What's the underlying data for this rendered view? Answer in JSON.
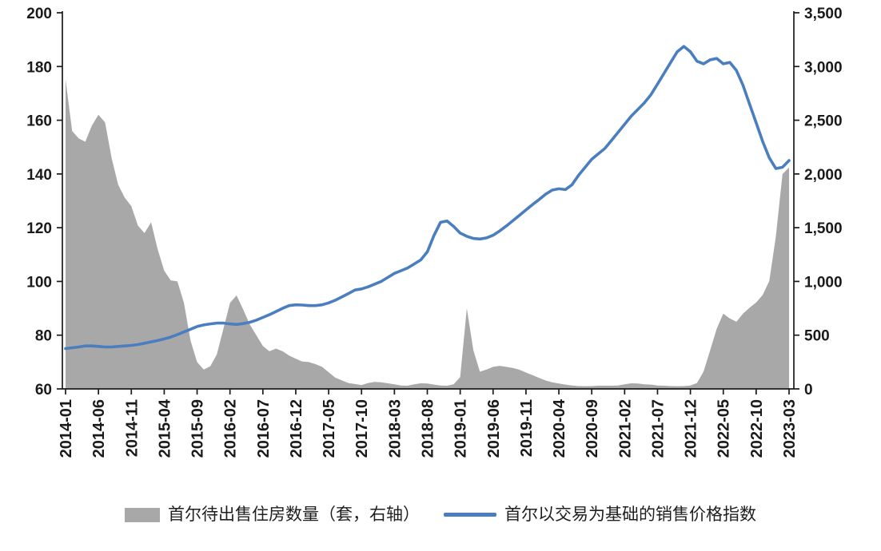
{
  "chart_data": {
    "type": "combo",
    "x_start": "2014-01",
    "x_months": 111,
    "x_tick_step": 5,
    "x_tick_labels": [
      "2014-01",
      "2014-06",
      "2014-11",
      "2015-04",
      "2015-09",
      "2016-02",
      "2016-07",
      "2016-12",
      "2017-05",
      "2017-10",
      "2018-03",
      "2018-08",
      "2019-01",
      "2019-06",
      "2019-11",
      "2020-04",
      "2020-09",
      "2021-02",
      "2021-07",
      "2021-12",
      "2022-05",
      "2022-10",
      "2023-03"
    ],
    "left_axis": {
      "min": 60,
      "max": 200,
      "ticks": [
        200,
        180,
        160,
        140,
        120,
        100,
        80,
        60
      ]
    },
    "right_axis": {
      "min": 0,
      "max": 3500,
      "ticks": [
        3500,
        3000,
        2500,
        2000,
        1500,
        1000,
        500,
        0
      ],
      "tick_labels": [
        "3,500",
        "3,000",
        "2,500",
        "2,000",
        "1,500",
        "1,000",
        "500",
        "0"
      ]
    },
    "axis_color": "#1a1a1a",
    "grid": false,
    "legend_position": "bottom",
    "series": [
      {
        "name": "首尔待出售住房数量（套，右轴）",
        "type": "area",
        "axis": "right",
        "color": "#A8A8A8",
        "values": [
          2880,
          2400,
          2330,
          2300,
          2450,
          2550,
          2480,
          2150,
          1900,
          1780,
          1700,
          1520,
          1450,
          1550,
          1300,
          1100,
          1010,
          1000,
          800,
          450,
          250,
          180,
          210,
          320,
          560,
          800,
          870,
          740,
          600,
          500,
          400,
          350,
          375,
          350,
          310,
          280,
          255,
          250,
          230,
          205,
          155,
          105,
          80,
          55,
          45,
          35,
          55,
          65,
          62,
          52,
          42,
          32,
          30,
          42,
          52,
          50,
          40,
          32,
          30,
          42,
          110,
          750,
          360,
          160,
          180,
          205,
          215,
          205,
          195,
          178,
          152,
          128,
          102,
          78,
          62,
          50,
          40,
          32,
          26,
          25,
          26,
          30,
          30,
          30,
          32,
          42,
          52,
          50,
          42,
          40,
          32,
          30,
          26,
          25,
          26,
          32,
          55,
          160,
          360,
          560,
          700,
          655,
          625,
          700,
          755,
          805,
          875,
          1005,
          1420,
          2000,
          2060
        ]
      },
      {
        "name": "首尔以交易为基础的销售价格指数",
        "type": "line",
        "axis": "left",
        "color": "#4A7EBF",
        "values": [
          75,
          75.3,
          75.6,
          76,
          76,
          75.8,
          75.6,
          75.6,
          75.8,
          76,
          76.2,
          76.5,
          77,
          77.5,
          78,
          78.6,
          79.3,
          80.2,
          81.2,
          82.2,
          83.2,
          83.8,
          84.2,
          84.5,
          84.5,
          84.2,
          84,
          84.3,
          84.8,
          85.6,
          86.6,
          87.6,
          88.8,
          90,
          91,
          91.3,
          91.2,
          91,
          91,
          91.3,
          92,
          93,
          94.2,
          95.5,
          96.8,
          97.2,
          98,
          99,
          100,
          101.5,
          103,
          104,
          105,
          106.5,
          108,
          111,
          117,
          122,
          122.5,
          120.5,
          118,
          116.8,
          116,
          115.8,
          116.2,
          117.2,
          118.8,
          120.6,
          122.6,
          124.6,
          126.6,
          128.6,
          130.5,
          132.5,
          134,
          134.5,
          134.2,
          136,
          139.5,
          142.5,
          145.5,
          147.5,
          149.5,
          152.5,
          155.5,
          158.5,
          161.5,
          164,
          166.5,
          169.5,
          173.5,
          177.5,
          181.5,
          185.5,
          187.5,
          185.5,
          182,
          181,
          182.5,
          183,
          181,
          181.5,
          178.5,
          173,
          166,
          159,
          152,
          146,
          142,
          142.5,
          145
        ]
      }
    ],
    "legend": [
      {
        "label": "首尔待出售住房数量（套，右轴）",
        "swatch": "area",
        "color": "#A8A8A8"
      },
      {
        "label": "首尔以交易为基础的销售价格指数",
        "swatch": "line",
        "color": "#4A7EBF"
      }
    ]
  }
}
